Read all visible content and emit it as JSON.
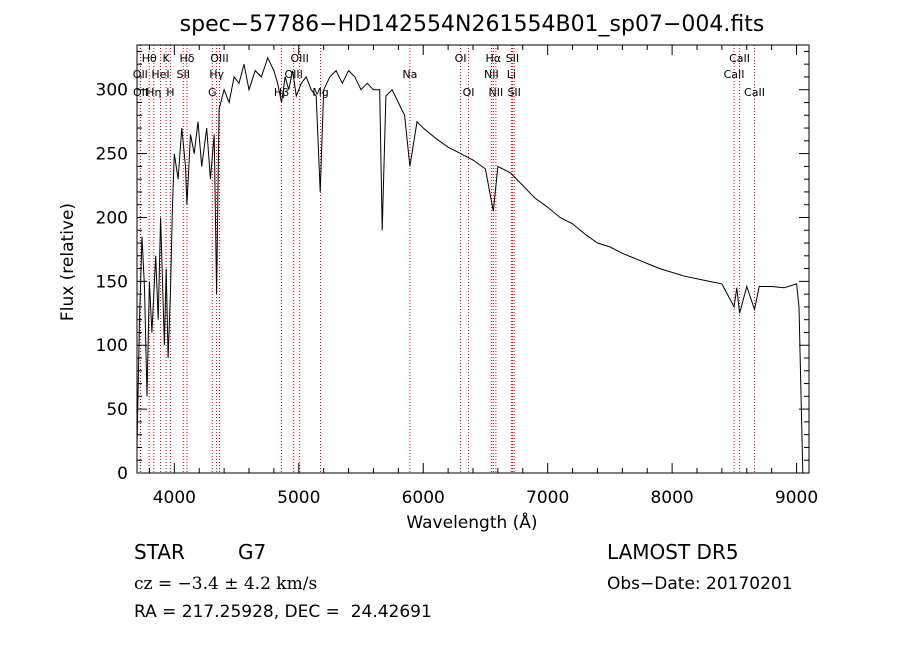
{
  "chart_data": {
    "type": "line",
    "title": "spec−57786−HD142554N261554B01_sp07−004.fits",
    "xlabel": "Wavelength (Å)",
    "ylabel": "Flux (relative)",
    "xlim": [
      3700,
      9100
    ],
    "ylim": [
      0,
      335
    ],
    "xticks": [
      4000,
      5000,
      6000,
      7000,
      8000,
      9000
    ],
    "xtick_labels": [
      "4000",
      "5000",
      "6000",
      "7000",
      "8000",
      "9000"
    ],
    "yticks": [
      0,
      50,
      100,
      150,
      200,
      250,
      300
    ],
    "ytick_labels": [
      "0",
      "50",
      "100",
      "150",
      "200",
      "250",
      "300"
    ],
    "grid": false,
    "series": [
      {
        "x": [
          3700,
          3720,
          3740,
          3760,
          3780,
          3800,
          3820,
          3850,
          3870,
          3890,
          3905,
          3920,
          3935,
          3950,
          3968,
          3985,
          4000,
          4030,
          4060,
          4090,
          4101,
          4130,
          4160,
          4190,
          4220,
          4260,
          4290,
          4320,
          4340,
          4360,
          4400,
          4440,
          4480,
          4520,
          4560,
          4600,
          4650,
          4700,
          4750,
          4800,
          4830,
          4861,
          4890,
          4920,
          4950,
          4980,
          5020,
          5060,
          5100,
          5140,
          5172,
          5200,
          5250,
          5300,
          5350,
          5400,
          5450,
          5500,
          5550,
          5600,
          5650,
          5670,
          5700,
          5750,
          5800,
          5850,
          5893,
          5950,
          6000,
          6100,
          6200,
          6300,
          6400,
          6500,
          6563,
          6600,
          6700,
          6800,
          6900,
          7000,
          7100,
          7200,
          7300,
          7400,
          7500,
          7600,
          7700,
          7800,
          7900,
          8000,
          8100,
          8200,
          8300,
          8400,
          8498,
          8520,
          8542,
          8600,
          8662,
          8700,
          8800,
          8900,
          9000,
          9020,
          9050
        ],
        "y": [
          20,
          120,
          185,
          145,
          60,
          150,
          110,
          170,
          120,
          200,
          150,
          100,
          160,
          90,
          140,
          210,
          250,
          230,
          270,
          240,
          210,
          265,
          250,
          275,
          240,
          270,
          230,
          265,
          140,
          285,
          300,
          290,
          310,
          305,
          320,
          300,
          315,
          310,
          325,
          315,
          305,
          290,
          310,
          300,
          315,
          295,
          305,
          310,
          300,
          295,
          220,
          300,
          310,
          315,
          305,
          315,
          310,
          300,
          305,
          300,
          300,
          190,
          295,
          300,
          290,
          280,
          240,
          275,
          270,
          262,
          255,
          250,
          245,
          238,
          205,
          240,
          235,
          225,
          215,
          208,
          200,
          195,
          187,
          180,
          177,
          172,
          168,
          164,
          160,
          157,
          154,
          152,
          150,
          148,
          130,
          145,
          125,
          146,
          128,
          146,
          146,
          145,
          148,
          130,
          0
        ]
      }
    ],
    "lines": [
      {
        "name": "Hθ",
        "x": 3798,
        "row": 1
      },
      {
        "name": "OII",
        "x": 3727,
        "row": 2
      },
      {
        "name": "OII",
        "x": 3729,
        "row": 3
      },
      {
        "name": "K",
        "x": 3934,
        "row": 1
      },
      {
        "name": "HeI",
        "x": 3889,
        "row": 2
      },
      {
        "name": "Hη",
        "x": 3835,
        "row": 3
      },
      {
        "name": "Hδ",
        "x": 4102,
        "row": 1
      },
      {
        "name": "SII",
        "x": 4072,
        "row": 2
      },
      {
        "name": "H",
        "x": 3968,
        "row": 3
      },
      {
        "name": "OIII",
        "x": 4363,
        "row": 1
      },
      {
        "name": "Hγ",
        "x": 4340,
        "row": 2
      },
      {
        "name": "G",
        "x": 4305,
        "row": 3
      },
      {
        "name": "OIII",
        "x": 5007,
        "row": 1
      },
      {
        "name": "OIII",
        "x": 4959,
        "row": 2
      },
      {
        "name": "Hβ",
        "x": 4861,
        "row": 3
      },
      {
        "name": "Mg",
        "x": 5175,
        "row": 3
      },
      {
        "name": "Na",
        "x": 5893,
        "row": 2
      },
      {
        "name": "OI",
        "x": 6300,
        "row": 1
      },
      {
        "name": "OI",
        "x": 6364,
        "row": 3
      },
      {
        "name": "Hα",
        "x": 6563,
        "row": 1
      },
      {
        "name": "NII",
        "x": 6548,
        "row": 2
      },
      {
        "name": "NII",
        "x": 6584,
        "row": 3
      },
      {
        "name": "SII",
        "x": 6717,
        "row": 1
      },
      {
        "name": "Li",
        "x": 6708,
        "row": 2
      },
      {
        "name": "SII",
        "x": 6731,
        "row": 3
      },
      {
        "name": "CaII",
        "x": 8542,
        "row": 1
      },
      {
        "name": "CaII",
        "x": 8498,
        "row": 2
      },
      {
        "name": "CaII",
        "x": 8662,
        "row": 3
      }
    ],
    "line_color": "#cc0000"
  },
  "info": {
    "class": "STAR",
    "subclass": "G7",
    "survey": "LAMOST DR5",
    "cz": "cz = −3.4 ± 4.2 km/s",
    "obs_date": "Obs−Date: 20170201",
    "radec": "RA = 217.25928, DEC =  24.42691"
  }
}
